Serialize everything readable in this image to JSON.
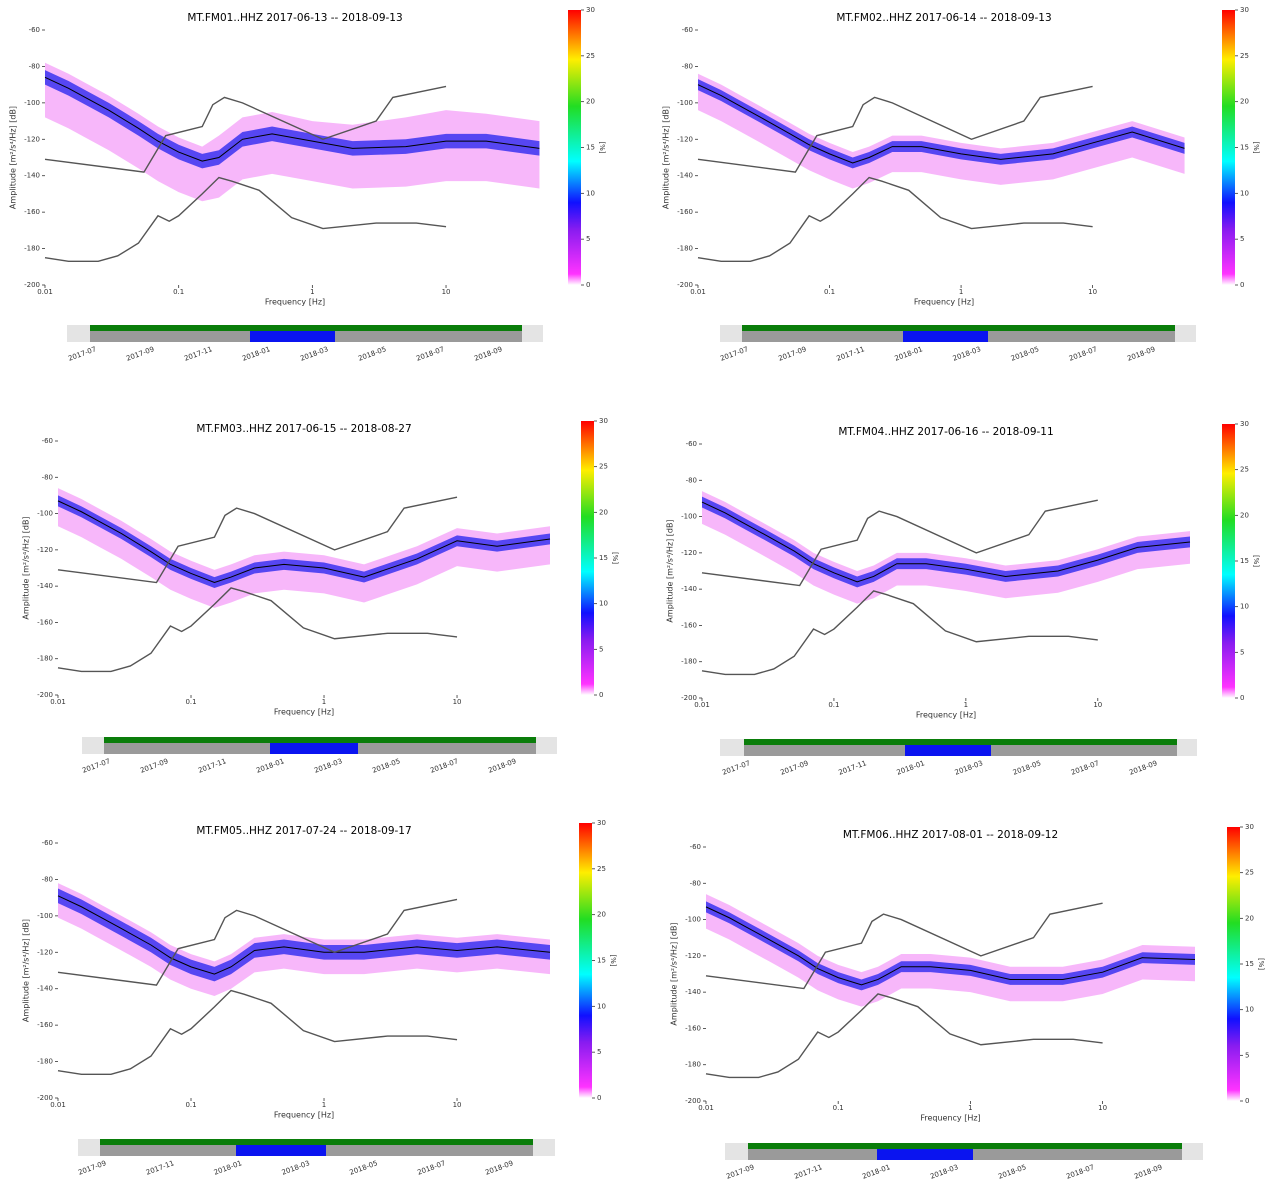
{
  "noise_models": {
    "nhnm": {
      "color": "#555555",
      "x": [
        0.01,
        0.055,
        0.08,
        0.15,
        0.18,
        0.22,
        0.3,
        1.2,
        3,
        4,
        10
      ],
      "values": [
        -131,
        -138,
        -118,
        -113,
        -101,
        -97,
        -100,
        -120,
        -110,
        -97,
        -91
      ]
    },
    "nlnm": {
      "color": "#555555",
      "x": [
        0.01,
        0.015,
        0.025,
        0.035,
        0.05,
        0.07,
        0.085,
        0.1,
        0.15,
        0.2,
        0.25,
        0.4,
        0.7,
        1.2,
        3,
        6,
        10
      ],
      "values": [
        -185,
        -187,
        -187,
        -184,
        -177,
        -162,
        -165,
        -162,
        -150,
        -141,
        -143,
        -148,
        -163,
        -169,
        -166,
        -166,
        -168
      ]
    }
  },
  "chart_data": [
    {
      "type": "ppsd",
      "title": "MT.FM01..HHZ   2017-06-13 -- 2018-09-13",
      "xlabel": "Frequency [Hz]",
      "ylabel": "Amplitude [m²/s⁴/Hz] [dB]",
      "log_x": true,
      "xlim": [
        0.01,
        55
      ],
      "ylim": [
        -200,
        -60
      ],
      "xticks": [
        0.01,
        0.1,
        1,
        10
      ],
      "yticks": [
        -60,
        -80,
        -100,
        -120,
        -140,
        -160,
        -180,
        -200
      ],
      "colorbar": {
        "label": "[%]",
        "lim": [
          0,
          30
        ],
        "ticks": [
          0,
          5,
          10,
          15,
          20,
          25,
          30
        ]
      },
      "x": [
        0.01,
        0.015,
        0.02,
        0.03,
        0.05,
        0.07,
        0.1,
        0.15,
        0.2,
        0.3,
        0.5,
        1,
        2,
        5,
        10,
        20,
        50
      ],
      "bands": [
        {
          "color": "#f07cf5",
          "upper": [
            -78,
            -84,
            -89,
            -96,
            -106,
            -113,
            -119,
            -124,
            -118,
            -108,
            -105,
            -110,
            -112,
            -108,
            -104,
            -106,
            -110
          ],
          "lower": [
            -108,
            -114,
            -119,
            -126,
            -136,
            -143,
            -149,
            -154,
            -152,
            -142,
            -139,
            -143,
            -147,
            -146,
            -143,
            -143,
            -147
          ]
        },
        {
          "color": "#3a32f0",
          "upper": [
            -82,
            -88,
            -93,
            -100,
            -110,
            -117,
            -123,
            -128,
            -126,
            -116,
            -113,
            -117,
            -121,
            -120,
            -117,
            -117,
            -121
          ],
          "lower": [
            -90,
            -96,
            -101,
            -108,
            -118,
            -125,
            -131,
            -136,
            -134,
            -124,
            -121,
            -125,
            -129,
            -128,
            -125,
            -125,
            -129
          ]
        }
      ],
      "mean": {
        "color": "#000000",
        "values": [
          -86,
          -92,
          -97,
          -104,
          -114,
          -121,
          -127,
          -132,
          -130,
          -120,
          -117,
          -121,
          -125,
          -124,
          -121,
          -121,
          -125
        ]
      },
      "timeline": [
        "2017-07",
        "2017-09",
        "2017-11",
        "2018-01",
        "2018-03",
        "2018-05",
        "2018-07",
        "2018-09"
      ]
    },
    {
      "type": "ppsd",
      "title": "MT.FM02..HHZ   2017-06-14 -- 2018-09-13",
      "xlabel": "Frequency [Hz]",
      "ylabel": "Amplitude [m²/s⁴/Hz] [dB]",
      "log_x": true,
      "xlim": [
        0.01,
        55
      ],
      "ylim": [
        -200,
        -60
      ],
      "xticks": [
        0.01,
        0.1,
        1,
        10
      ],
      "yticks": [
        -60,
        -80,
        -100,
        -120,
        -140,
        -160,
        -180,
        -200
      ],
      "colorbar": {
        "label": "[%]",
        "lim": [
          0,
          30
        ],
        "ticks": [
          0,
          5,
          10,
          15,
          20,
          25,
          30
        ]
      },
      "x": [
        0.01,
        0.015,
        0.02,
        0.03,
        0.05,
        0.07,
        0.1,
        0.15,
        0.2,
        0.3,
        0.5,
        1,
        2,
        5,
        10,
        20,
        50
      ],
      "bands": [
        {
          "color": "#f07cf5",
          "upper": [
            -84,
            -90,
            -95,
            -102,
            -111,
            -117,
            -122,
            -127,
            -124,
            -118,
            -118,
            -122,
            -125,
            -122,
            -116,
            -110,
            -119
          ],
          "lower": [
            -104,
            -110,
            -115,
            -122,
            -131,
            -137,
            -142,
            -147,
            -144,
            -138,
            -138,
            -142,
            -145,
            -142,
            -136,
            -130,
            -139
          ]
        },
        {
          "color": "#3a32f0",
          "upper": [
            -87,
            -93,
            -98,
            -105,
            -114,
            -120,
            -125,
            -130,
            -127,
            -121,
            -121,
            -125,
            -128,
            -125,
            -119,
            -113,
            -122
          ],
          "lower": [
            -93,
            -99,
            -104,
            -111,
            -120,
            -126,
            -131,
            -136,
            -133,
            -127,
            -127,
            -131,
            -134,
            -131,
            -125,
            -119,
            -128
          ]
        }
      ],
      "mean": {
        "color": "#000000",
        "values": [
          -90,
          -96,
          -101,
          -108,
          -117,
          -123,
          -128,
          -133,
          -130,
          -124,
          -124,
          -128,
          -131,
          -128,
          -122,
          -116,
          -125
        ]
      },
      "timeline": [
        "2017-07",
        "2017-09",
        "2017-11",
        "2018-01",
        "2018-03",
        "2018-05",
        "2018-07",
        "2018-09"
      ]
    },
    {
      "type": "ppsd",
      "title": "MT.FM03..HHZ   2017-06-15 -- 2018-08-27",
      "xlabel": "Frequency [Hz]",
      "ylabel": "Amplitude [m²/s⁴/Hz] [dB]",
      "log_x": true,
      "xlim": [
        0.01,
        50
      ],
      "ylim": [
        -200,
        -60
      ],
      "xticks": [
        0.01,
        0.1,
        1,
        10
      ],
      "yticks": [
        -60,
        -80,
        -100,
        -120,
        -140,
        -160,
        -180,
        -200
      ],
      "colorbar": {
        "label": "[%]",
        "lim": [
          0,
          30
        ],
        "ticks": [
          0,
          5,
          10,
          15,
          20,
          25,
          30
        ]
      },
      "x": [
        0.01,
        0.015,
        0.02,
        0.03,
        0.05,
        0.07,
        0.1,
        0.15,
        0.2,
        0.3,
        0.5,
        1,
        2,
        5,
        10,
        20,
        50
      ],
      "bands": [
        {
          "color": "#f07cf5",
          "upper": [
            -86,
            -92,
            -97,
            -104,
            -114,
            -121,
            -126,
            -131,
            -128,
            -123,
            -121,
            -123,
            -128,
            -118,
            -108,
            -111,
            -107
          ],
          "lower": [
            -107,
            -113,
            -118,
            -125,
            -135,
            -142,
            -147,
            -152,
            -149,
            -144,
            -142,
            -144,
            -149,
            -139,
            -129,
            -132,
            -128
          ]
        },
        {
          "color": "#3a32f0",
          "upper": [
            -90,
            -96,
            -101,
            -108,
            -118,
            -125,
            -130,
            -135,
            -132,
            -127,
            -125,
            -127,
            -132,
            -122,
            -112,
            -115,
            -111
          ],
          "lower": [
            -96,
            -102,
            -107,
            -114,
            -124,
            -131,
            -136,
            -141,
            -138,
            -133,
            -131,
            -133,
            -138,
            -128,
            -118,
            -121,
            -117
          ]
        }
      ],
      "mean": {
        "color": "#000000",
        "values": [
          -93,
          -99,
          -104,
          -111,
          -121,
          -128,
          -133,
          -138,
          -135,
          -130,
          -128,
          -130,
          -135,
          -125,
          -115,
          -118,
          -114
        ]
      },
      "timeline": [
        "2017-07",
        "2017-09",
        "2017-11",
        "2018-01",
        "2018-03",
        "2018-05",
        "2018-07",
        "2018-09"
      ]
    },
    {
      "type": "ppsd",
      "title": "MT.FM04..HHZ   2017-06-16 -- 2018-09-11",
      "xlabel": "Frequency [Hz]",
      "ylabel": "Amplitude [m²/s⁴/Hz] [dB]",
      "log_x": true,
      "xlim": [
        0.01,
        50
      ],
      "ylim": [
        -200,
        -60
      ],
      "xticks": [
        0.01,
        0.1,
        1,
        10
      ],
      "yticks": [
        -60,
        -80,
        -100,
        -120,
        -140,
        -160,
        -180,
        -200
      ],
      "colorbar": {
        "label": "[%]",
        "lim": [
          0,
          30
        ],
        "ticks": [
          0,
          5,
          10,
          15,
          20,
          25,
          30
        ]
      },
      "x": [
        0.01,
        0.015,
        0.02,
        0.03,
        0.05,
        0.07,
        0.1,
        0.15,
        0.2,
        0.3,
        0.5,
        1,
        2,
        5,
        10,
        20,
        50
      ],
      "bands": [
        {
          "color": "#f07cf5",
          "upper": [
            -86,
            -92,
            -97,
            -104,
            -113,
            -120,
            -125,
            -130,
            -127,
            -120,
            -120,
            -123,
            -127,
            -124,
            -118,
            -111,
            -108
          ],
          "lower": [
            -104,
            -110,
            -115,
            -122,
            -131,
            -138,
            -143,
            -148,
            -145,
            -138,
            -138,
            -141,
            -145,
            -142,
            -136,
            -129,
            -126
          ]
        },
        {
          "color": "#3a32f0",
          "upper": [
            -89,
            -95,
            -100,
            -107,
            -116,
            -123,
            -128,
            -133,
            -130,
            -123,
            -123,
            -126,
            -130,
            -127,
            -121,
            -114,
            -111
          ],
          "lower": [
            -95,
            -101,
            -106,
            -113,
            -122,
            -129,
            -134,
            -139,
            -136,
            -129,
            -129,
            -132,
            -136,
            -133,
            -127,
            -120,
            -117
          ]
        }
      ],
      "mean": {
        "color": "#000000",
        "values": [
          -92,
          -98,
          -103,
          -110,
          -119,
          -126,
          -131,
          -136,
          -133,
          -126,
          -126,
          -129,
          -133,
          -130,
          -124,
          -117,
          -114
        ]
      },
      "timeline": [
        "2017-07",
        "2017-09",
        "2017-11",
        "2018-01",
        "2018-03",
        "2018-05",
        "2018-07",
        "2018-09"
      ]
    },
    {
      "type": "ppsd",
      "title": "MT.FM05..HHZ   2017-07-24 -- 2018-09-17",
      "xlabel": "Frequency [Hz]",
      "ylabel": "Amplitude [m²/s⁴/Hz] [dB]",
      "log_x": true,
      "xlim": [
        0.01,
        50
      ],
      "ylim": [
        -200,
        -60
      ],
      "xticks": [
        0.01,
        0.1,
        1,
        10
      ],
      "yticks": [
        -60,
        -80,
        -100,
        -120,
        -140,
        -160,
        -180,
        -200
      ],
      "colorbar": {
        "label": "[%]",
        "lim": [
          0,
          30
        ],
        "ticks": [
          0,
          5,
          10,
          15,
          20,
          25,
          30
        ]
      },
      "x": [
        0.01,
        0.015,
        0.02,
        0.03,
        0.05,
        0.07,
        0.1,
        0.15,
        0.2,
        0.3,
        0.5,
        1,
        2,
        5,
        10,
        20,
        50
      ],
      "bands": [
        {
          "color": "#f07cf5",
          "upper": [
            -82,
            -88,
            -93,
            -100,
            -109,
            -116,
            -121,
            -125,
            -121,
            -112,
            -110,
            -113,
            -113,
            -110,
            -112,
            -110,
            -113
          ],
          "lower": [
            -101,
            -107,
            -112,
            -119,
            -128,
            -135,
            -140,
            -144,
            -140,
            -131,
            -129,
            -132,
            -132,
            -129,
            -131,
            -129,
            -132
          ]
        },
        {
          "color": "#3a32f0",
          "upper": [
            -85,
            -91,
            -96,
            -103,
            -112,
            -119,
            -124,
            -128,
            -124,
            -115,
            -113,
            -116,
            -116,
            -113,
            -115,
            -113,
            -116
          ],
          "lower": [
            -93,
            -99,
            -104,
            -111,
            -120,
            -127,
            -132,
            -136,
            -132,
            -123,
            -121,
            -124,
            -124,
            -121,
            -123,
            -121,
            -124
          ]
        }
      ],
      "mean": {
        "color": "#000000",
        "values": [
          -89,
          -95,
          -100,
          -107,
          -116,
          -123,
          -128,
          -132,
          -128,
          -119,
          -117,
          -120,
          -120,
          -117,
          -119,
          -117,
          -120
        ]
      },
      "timeline": [
        "2017-09",
        "2017-11",
        "2018-01",
        "2018-03",
        "2018-05",
        "2018-07",
        "2018-09"
      ]
    },
    {
      "type": "ppsd",
      "title": "MT.FM06..HHZ   2017-08-01 -- 2018-09-12",
      "xlabel": "Frequency [Hz]",
      "ylabel": "Amplitude [m²/s⁴/Hz] [dB]",
      "log_x": true,
      "xlim": [
        0.01,
        50
      ],
      "ylim": [
        -200,
        -60
      ],
      "xticks": [
        0.01,
        0.1,
        1,
        10
      ],
      "yticks": [
        -60,
        -80,
        -100,
        -120,
        -140,
        -160,
        -180,
        -200
      ],
      "colorbar": {
        "label": "[%]",
        "lim": [
          0,
          30
        ],
        "ticks": [
          0,
          5,
          10,
          15,
          20,
          25,
          30
        ]
      },
      "x": [
        0.01,
        0.015,
        0.02,
        0.03,
        0.05,
        0.07,
        0.1,
        0.15,
        0.2,
        0.3,
        0.5,
        1,
        2,
        5,
        10,
        20,
        50
      ],
      "bands": [
        {
          "color": "#f07cf5",
          "upper": [
            -86,
            -92,
            -97,
            -104,
            -113,
            -120,
            -125,
            -129,
            -126,
            -119,
            -119,
            -121,
            -126,
            -126,
            -122,
            -114,
            -115
          ],
          "lower": [
            -105,
            -111,
            -116,
            -123,
            -132,
            -139,
            -144,
            -148,
            -145,
            -138,
            -138,
            -140,
            -145,
            -145,
            -141,
            -133,
            -134
          ]
        },
        {
          "color": "#3a32f0",
          "upper": [
            -90,
            -96,
            -101,
            -108,
            -117,
            -124,
            -129,
            -133,
            -130,
            -123,
            -123,
            -125,
            -130,
            -130,
            -126,
            -118,
            -119
          ],
          "lower": [
            -96,
            -102,
            -107,
            -114,
            -123,
            -130,
            -135,
            -139,
            -136,
            -129,
            -129,
            -131,
            -136,
            -136,
            -132,
            -124,
            -125
          ]
        }
      ],
      "mean": {
        "color": "#000000",
        "values": [
          -93,
          -99,
          -104,
          -111,
          -120,
          -127,
          -132,
          -136,
          -133,
          -126,
          -126,
          -128,
          -133,
          -133,
          -129,
          -121,
          -122
        ]
      },
      "timeline": [
        "2017-09",
        "2017-11",
        "2018-01",
        "2018-03",
        "2018-05",
        "2018-07",
        "2018-09"
      ]
    }
  ]
}
